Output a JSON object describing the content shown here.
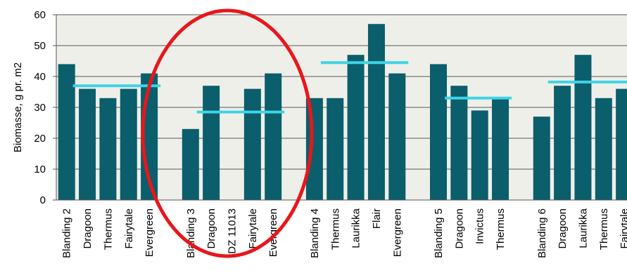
{
  "chart_data": {
    "type": "bar",
    "ylabel": "Biomasse, g pr. m2",
    "xlabel": "",
    "title": "",
    "ylim": [
      0,
      60
    ],
    "yticks": [
      "0",
      "10",
      "20",
      "30",
      "40",
      "50",
      "60"
    ],
    "grid": true,
    "colors": {
      "bar": "#0b5e6b",
      "mean_line": "#3fd4e6",
      "highlight_ellipse": "#e8161b",
      "plot_background": "#efefea",
      "gridline": "#8a8a8a"
    },
    "groups": [
      {
        "categories": [
          "Blanding 2",
          "Dragoon",
          "Thermus",
          "Fairytale",
          "Evergreen"
        ],
        "values": [
          44,
          36,
          33,
          36,
          41
        ],
        "mean": 37
      },
      {
        "categories": [
          "Blanding 3",
          "Dragoon",
          "DZ 11013",
          "Fairytale",
          "Evergreen"
        ],
        "values": [
          23,
          37,
          null,
          36,
          41
        ],
        "mean": 28.5,
        "highlighted": true
      },
      {
        "categories": [
          "Blanding 4",
          "Thermus",
          "Laurikka",
          "Flair",
          "Evergreen"
        ],
        "values": [
          33,
          33,
          47,
          57,
          41
        ],
        "mean": 44.5
      },
      {
        "categories": [
          "Blanding 5",
          "Dragoon",
          "Invictus",
          "Thermus"
        ],
        "values": [
          44,
          37,
          29,
          33
        ],
        "mean": 33
      },
      {
        "categories": [
          "Blanding 6",
          "Dragoon",
          "Laurikka",
          "Thermus",
          "Fairytale"
        ],
        "values": [
          27,
          37,
          47,
          33,
          36
        ],
        "mean": 38.2
      }
    ]
  }
}
